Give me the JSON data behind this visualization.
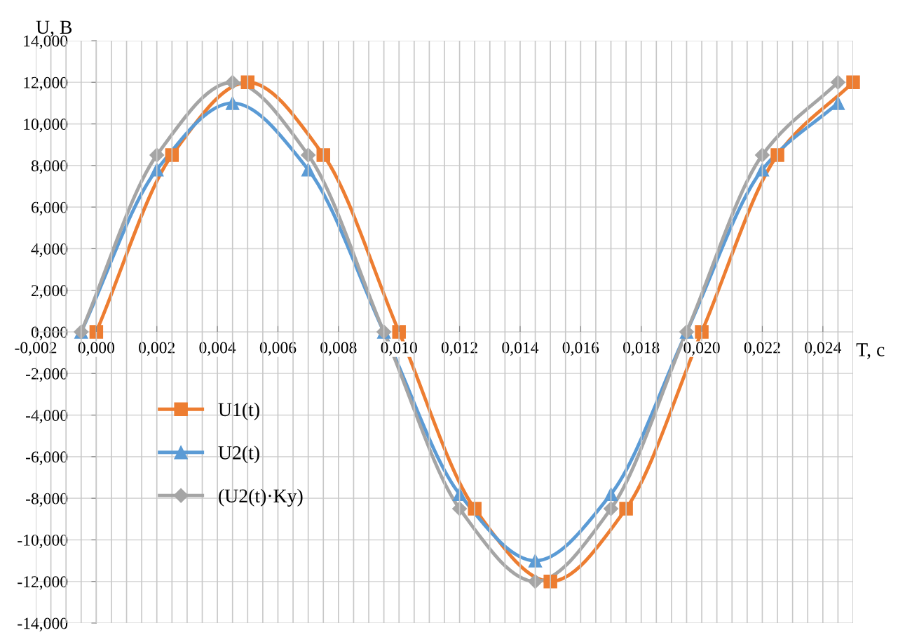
{
  "chart_data": {
    "type": "line",
    "xlabel": "T, c",
    "ylabel": "U, B",
    "xlim": [
      -0.002,
      0.025
    ],
    "ylim": [
      -14,
      14
    ],
    "xticks": [
      {
        "value": -0.002,
        "label": "-0,002"
      },
      {
        "value": 0,
        "label": "0,000"
      },
      {
        "value": 0.002,
        "label": "0,002"
      },
      {
        "value": 0.004,
        "label": "0,004"
      },
      {
        "value": 0.006,
        "label": "0,006"
      },
      {
        "value": 0.008,
        "label": "0,008"
      },
      {
        "value": 0.01,
        "label": "0,010"
      },
      {
        "value": 0.012,
        "label": "0,012"
      },
      {
        "value": 0.014,
        "label": "0,014"
      },
      {
        "value": 0.016,
        "label": "0,016"
      },
      {
        "value": 0.018,
        "label": "0,018"
      },
      {
        "value": 0.02,
        "label": "0,020"
      },
      {
        "value": 0.022,
        "label": "0,022"
      },
      {
        "value": 0.024,
        "label": "0,024"
      }
    ],
    "yticks": [
      {
        "value": -14,
        "label": "-14,000"
      },
      {
        "value": -12,
        "label": "-12,000"
      },
      {
        "value": -10,
        "label": "-10,000"
      },
      {
        "value": -8,
        "label": "-8,000"
      },
      {
        "value": -6,
        "label": "-6,000"
      },
      {
        "value": -4,
        "label": "-4,000"
      },
      {
        "value": -2,
        "label": "-2,000"
      },
      {
        "value": 0,
        "label": "0,000"
      },
      {
        "value": 2,
        "label": "2,000"
      },
      {
        "value": 4,
        "label": "4,000"
      },
      {
        "value": 6,
        "label": "6,000"
      },
      {
        "value": 8,
        "label": "8,000"
      },
      {
        "value": 10,
        "label": "10,000"
      },
      {
        "value": 12,
        "label": "12,000"
      },
      {
        "value": 14,
        "label": "14,000"
      }
    ],
    "grid": true,
    "legend": "bottom left",
    "line_style": "solid",
    "series": [
      {
        "name": "U1(t)",
        "color": "#ed7d31",
        "marker": "square",
        "x": [
          0,
          0.0025,
          0.005,
          0.0075,
          0.01,
          0.0125,
          0.015,
          0.0175,
          0.02,
          0.0225,
          0.025
        ],
        "values": [
          0,
          8.5,
          12,
          8.5,
          0,
          -8.5,
          -12,
          -8.5,
          0,
          8.5,
          12
        ]
      },
      {
        "name": "U2(t)",
        "color": "#5b9bd5",
        "marker": "triangle",
        "x": [
          -0.0005,
          0.002,
          0.0045,
          0.007,
          0.0095,
          0.012,
          0.0145,
          0.017,
          0.0195,
          0.022,
          0.0245
        ],
        "values": [
          0,
          7.8,
          11,
          7.8,
          0,
          -7.8,
          -11,
          -7.8,
          0,
          7.8,
          11
        ]
      },
      {
        "name": "(U2(t)·Ky)",
        "color": "#a5a5a5",
        "marker": "diamond",
        "x": [
          -0.0005,
          0.002,
          0.0045,
          0.007,
          0.0095,
          0.012,
          0.0145,
          0.017,
          0.0195,
          0.022,
          0.0245
        ],
        "values": [
          0,
          8.5,
          12,
          8.5,
          0,
          -8.5,
          -12,
          -8.5,
          0,
          8.5,
          12
        ]
      }
    ]
  }
}
